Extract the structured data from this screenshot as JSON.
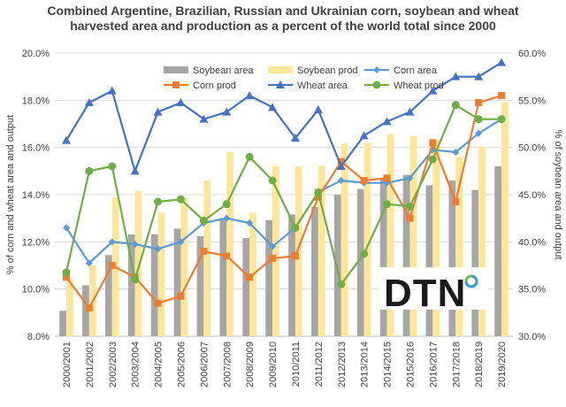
{
  "chart_data": {
    "type": "bar",
    "title_line1": "Combined Argentine, Brazilian, Russian and Ukrainian corn, soybean and wheat",
    "title_line2": "harvested area and production as a percent of the world total since 2000",
    "ylabel_left": "% of corn and  wheat area and output",
    "ylabel_right": "% of soybean area and output",
    "ylim_left": [
      8.0,
      20.0
    ],
    "ylim_right": [
      30.0,
      60.0
    ],
    "left_ticks": [
      "8.0%",
      "10.0%",
      "12.0%",
      "14.0%",
      "16.0%",
      "18.0%",
      "20.0%"
    ],
    "right_ticks": [
      "30.0%",
      "35.0%",
      "40.0%",
      "45.0%",
      "50.0%",
      "55.0%",
      "60.0%"
    ],
    "grid": true,
    "legend_position": "top",
    "categories": [
      "2000/2001",
      "2001/2002",
      "2002/2003",
      "2003/2004",
      "2004/2005",
      "2005/2006",
      "2006/2007",
      "2007/2008",
      "2008/2009",
      "2009/2010",
      "2010/2011",
      "2011/2012",
      "2012/2013",
      "2013/2014",
      "2014/2015",
      "2015/2016",
      "2016/2017",
      "2017/2018",
      "2018/2019",
      "2019/2020"
    ],
    "series": [
      {
        "name": "Soybean area",
        "kind": "bar",
        "axis": "right",
        "color": "#a6a6a6",
        "values": [
          32.7,
          35.4,
          38.6,
          40.8,
          40.8,
          41.4,
          40.6,
          42.5,
          40.4,
          42.3,
          42.9,
          43.7,
          45.0,
          45.6,
          46.6,
          47.1,
          46.0,
          46.5,
          45.5,
          48.0
        ]
      },
      {
        "name": "Soybean prod",
        "kind": "bar",
        "axis": "right",
        "color": "#ffe699",
        "values": [
          36.0,
          37.5,
          44.7,
          45.4,
          43.1,
          44.7,
          46.5,
          49.5,
          43.1,
          48.0,
          48.0,
          48.0,
          50.4,
          50.5,
          51.4,
          51.2,
          50.8,
          49.0,
          50.1,
          54.8
        ]
      },
      {
        "name": "Corn area",
        "kind": "line",
        "axis": "left",
        "color": "#5b9bd5",
        "marker": "diamond",
        "values": [
          12.6,
          11.1,
          12.0,
          11.9,
          11.7,
          12.0,
          12.8,
          13.0,
          12.8,
          11.8,
          12.6,
          14.1,
          14.6,
          14.5,
          14.5,
          14.7,
          15.9,
          15.8,
          16.6,
          17.2
        ]
      },
      {
        "name": "Corn prod",
        "kind": "line",
        "axis": "left",
        "color": "#ed7d31",
        "marker": "square",
        "values": [
          10.5,
          9.2,
          11.0,
          10.5,
          9.4,
          9.7,
          11.6,
          11.4,
          10.5,
          11.3,
          11.4,
          13.9,
          15.4,
          14.6,
          14.7,
          13.0,
          16.2,
          13.7,
          17.9,
          18.2
        ]
      },
      {
        "name": "Wheat area",
        "kind": "line",
        "axis": "left",
        "color": "#4472c4",
        "marker": "triangle",
        "values": [
          16.3,
          17.9,
          18.4,
          15.0,
          17.5,
          17.9,
          17.2,
          17.5,
          18.2,
          17.7,
          16.4,
          17.6,
          15.2,
          16.5,
          17.1,
          17.5,
          18.4,
          19.0,
          19.0,
          19.6
        ]
      },
      {
        "name": "Wheat prod",
        "kind": "line",
        "axis": "left",
        "color": "#70ad47",
        "marker": "circle",
        "values": [
          10.7,
          15.0,
          15.2,
          10.4,
          13.7,
          13.8,
          12.9,
          13.6,
          15.6,
          14.6,
          12.6,
          14.1,
          10.2,
          11.5,
          13.6,
          13.5,
          15.5,
          17.8,
          17.2,
          17.2
        ]
      }
    ]
  },
  "logo": {
    "text": "DTN"
  }
}
